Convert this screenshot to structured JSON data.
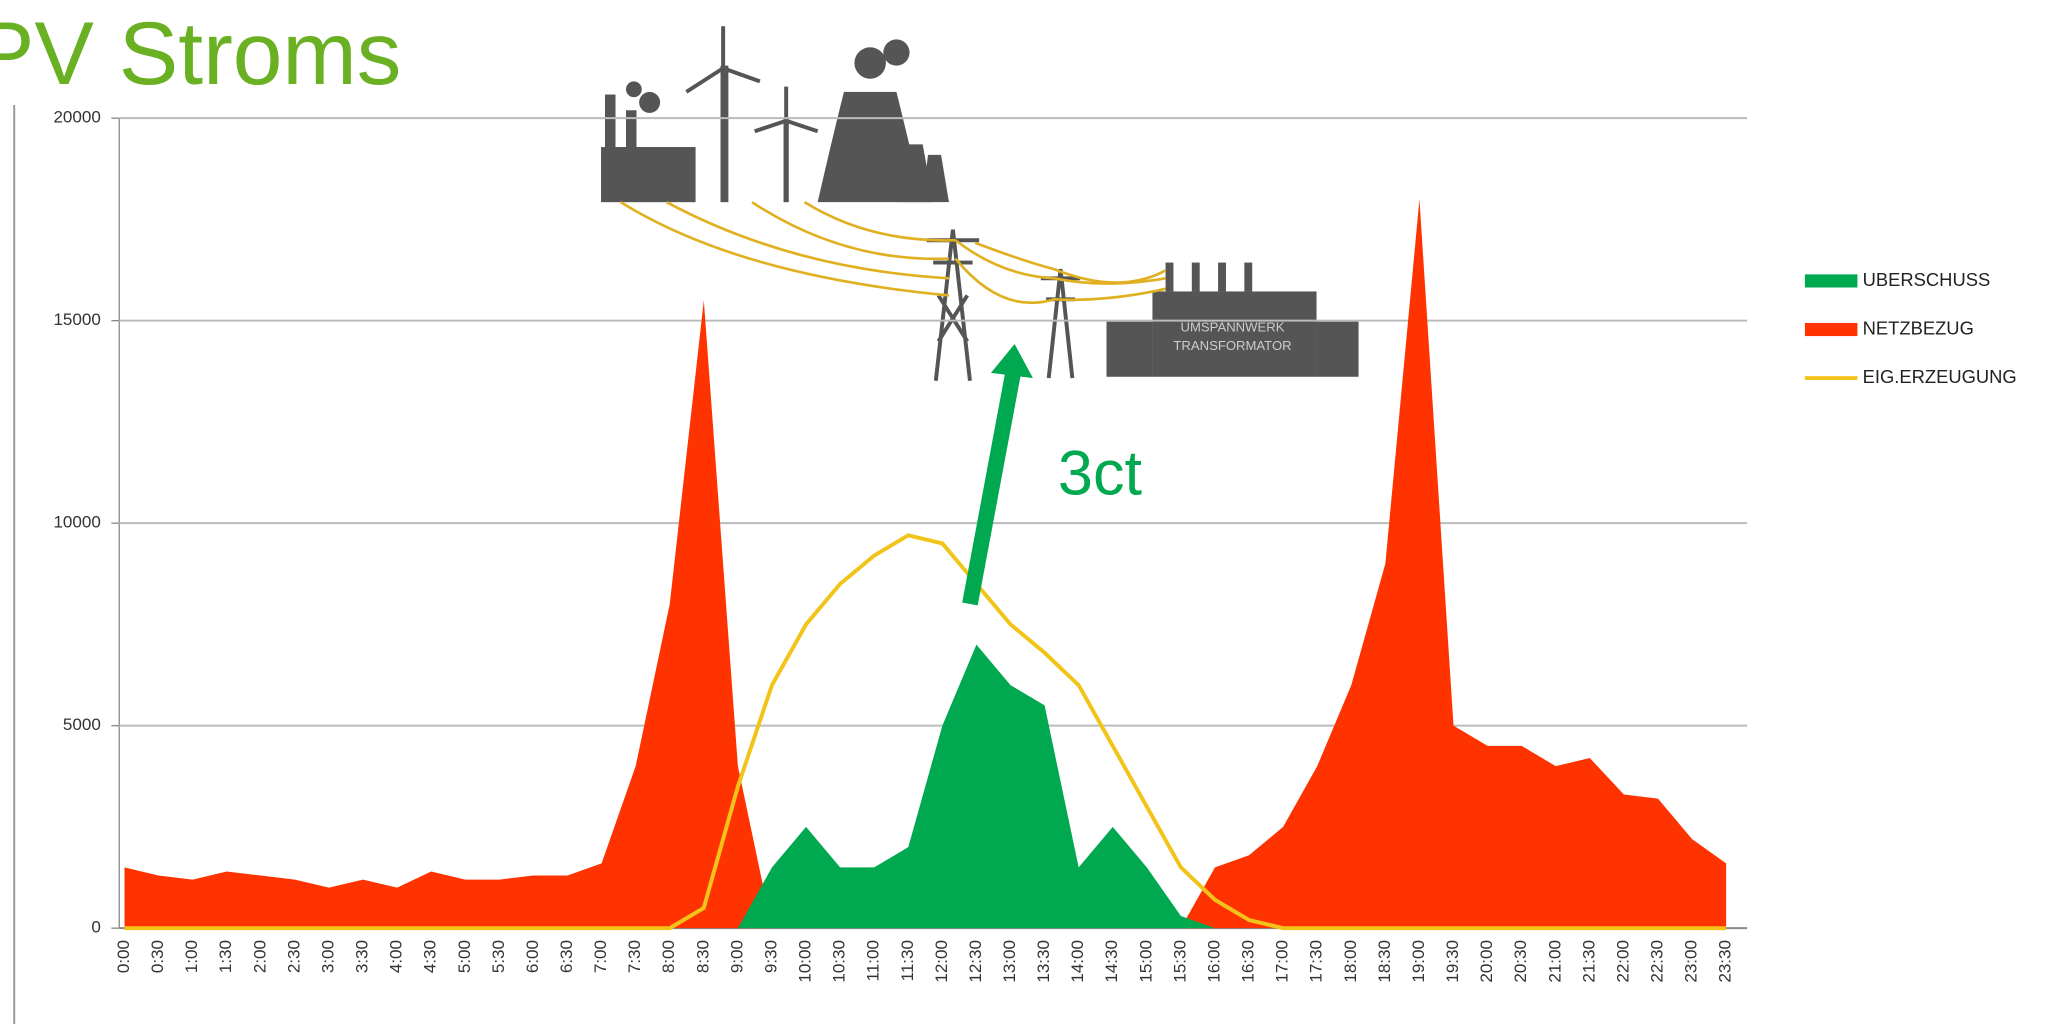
{
  "chart_data": {
    "type": "area",
    "title": "PV Stroms",
    "categories": [
      "0:00",
      "0:30",
      "1:00",
      "1:30",
      "2:00",
      "2:30",
      "3:00",
      "3:30",
      "4:00",
      "4:30",
      "5:00",
      "5:30",
      "6:00",
      "6:30",
      "7:00",
      "7:30",
      "8:00",
      "8:30",
      "9:00",
      "9:30",
      "10:00",
      "10:30",
      "11:00",
      "11:30",
      "12:00",
      "12:30",
      "13:00",
      "13:30",
      "14:00",
      "14:30",
      "15:00",
      "15:30",
      "16:00",
      "16:30",
      "17:00",
      "17:30",
      "18:00",
      "18:30",
      "19:00",
      "19:30",
      "20:00",
      "20:30",
      "21:00",
      "21:30",
      "22:00",
      "22:30",
      "23:00",
      "23:30"
    ],
    "series": [
      {
        "name": "NETZBEZUG",
        "color": "#ff3300",
        "fill": true,
        "values": [
          1500,
          1300,
          1200,
          1400,
          1300,
          1200,
          1000,
          1200,
          1000,
          1400,
          1200,
          1200,
          1300,
          1300,
          1600,
          4000,
          8000,
          15500,
          4000,
          0,
          0,
          0,
          0,
          0,
          0,
          0,
          0,
          0,
          0,
          0,
          0,
          0,
          1500,
          1800,
          2500,
          4000,
          6000,
          9000,
          18000,
          5000,
          4500,
          4500,
          4000,
          4200,
          3300,
          3200,
          2200,
          1600
        ]
      },
      {
        "name": "UBERSCHUSS",
        "color": "#00a850",
        "fill": true,
        "values": [
          0,
          0,
          0,
          0,
          0,
          0,
          0,
          0,
          0,
          0,
          0,
          0,
          0,
          0,
          0,
          0,
          0,
          0,
          0,
          1500,
          2500,
          1500,
          1500,
          2000,
          5000,
          7000,
          6000,
          5500,
          1500,
          2500,
          1500,
          300,
          0,
          0,
          0,
          0,
          0,
          0,
          0,
          0,
          0,
          0,
          0,
          0,
          0,
          0,
          0,
          0
        ]
      },
      {
        "name": "EIG.ERZEUGUNG",
        "color": "#f2c318",
        "fill": false,
        "values": [
          0,
          0,
          0,
          0,
          0,
          0,
          0,
          0,
          0,
          0,
          0,
          0,
          0,
          0,
          0,
          0,
          0,
          500,
          3500,
          6000,
          7500,
          8500,
          9200,
          9700,
          9500,
          8500,
          7500,
          6800,
          6000,
          4500,
          3000,
          1500,
          700,
          200,
          0,
          0,
          0,
          0,
          0,
          0,
          0,
          0,
          0,
          0,
          0,
          0,
          0,
          0
        ]
      }
    ],
    "legend_order": [
      1,
      0,
      2
    ],
    "ylim": [
      0,
      20000
    ],
    "yticks": [
      0,
      5000,
      10000,
      15000,
      20000
    ],
    "grid": true,
    "annotations": [
      "3ct",
      "UMSPANNWERK",
      "TRANSFORMATOR"
    ]
  }
}
